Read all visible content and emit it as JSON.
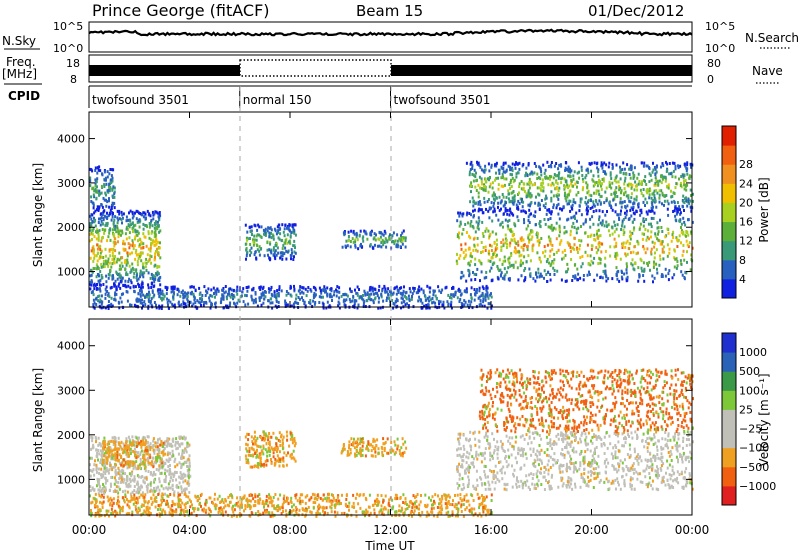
{
  "header": {
    "station": "Prince George (fitACF)",
    "beam": "Beam 15",
    "date": "01/Dec/2012"
  },
  "strips": {
    "nsky_label": "N.Sky",
    "nsearch_label": "N.Search",
    "count_ticks": [
      "10^5",
      "10^0"
    ],
    "freq_label_top": "Freq.",
    "freq_label_unit": "[MHz]",
    "freq_ticks": [
      "18",
      "8"
    ],
    "nave_label": "Nave",
    "nave_ticks": [
      "80",
      "0"
    ],
    "cpid_label": "CPID"
  },
  "cpid_segments": [
    {
      "label": "twofsound 3501",
      "start_hour": 0,
      "end_hour": 6
    },
    {
      "label": "normal 150",
      "start_hour": 6,
      "end_hour": 12
    },
    {
      "label": "twofsound 3501",
      "start_hour": 12,
      "end_hour": 24
    }
  ],
  "axes": {
    "ylabel": "Slant Range [km]",
    "xlabel": "Time UT",
    "x_ticks": [
      "00:00",
      "04:00",
      "08:00",
      "12:00",
      "16:00",
      "20:00",
      "00:00"
    ],
    "y_ticks": [
      "1000",
      "2000",
      "3000",
      "4000"
    ]
  },
  "colors": {
    "power_scale": [
      "#1020e0",
      "#2860c0",
      "#3a9a78",
      "#5cb03a",
      "#a8d020",
      "#f0c000",
      "#f09020",
      "#f06010",
      "#e02000"
    ],
    "velocity_scale": [
      "#2030d0",
      "#2a62b8",
      "#3a9a48",
      "#7cc838",
      "#c0c0b8",
      "#c0c0b8",
      "#f0a020",
      "#f06010",
      "#e02020"
    ]
  },
  "chart_data": [
    {
      "type": "heatmap",
      "title": "",
      "xlabel": "Time UT",
      "ylabel": "Slant Range [km]",
      "xlim": [
        0,
        24
      ],
      "ylim": [
        200,
        4600
      ],
      "colorbar_label": "Power [dB]",
      "colorbar_ticks": [
        "4",
        "8",
        "12",
        "16",
        "20",
        "24",
        "28"
      ],
      "scatter_regions": [
        {
          "hours": [
            0,
            2.8
          ],
          "range_km": [
            700,
            2400
          ],
          "peak_value_db": 28
        },
        {
          "hours": [
            0,
            1.0
          ],
          "range_km": [
            2400,
            3400
          ],
          "peak_value_db": 12
        },
        {
          "hours": [
            0,
            16
          ],
          "range_km": [
            200,
            700
          ],
          "peak_value_db": 8
        },
        {
          "hours": [
            6.2,
            8.2
          ],
          "range_km": [
            1300,
            2100
          ],
          "peak_value_db": 16
        },
        {
          "hours": [
            10,
            12.6
          ],
          "range_km": [
            1550,
            1950
          ],
          "peak_value_db": 16
        },
        {
          "hours": [
            14.6,
            24
          ],
          "range_km": [
            800,
            2400
          ],
          "peak_value_db": 28
        },
        {
          "hours": [
            15,
            24
          ],
          "range_km": [
            2400,
            3500
          ],
          "peak_value_db": 20
        }
      ]
    },
    {
      "type": "heatmap",
      "title": "",
      "xlabel": "Time UT",
      "ylabel": "Slant Range [km]",
      "xlim": [
        0,
        24
      ],
      "ylim": [
        200,
        4600
      ],
      "colorbar_label": "Velocity [m s⁻¹]",
      "colorbar_ticks": [
        "1000",
        "500",
        "100",
        "25",
        "−25",
        "−100",
        "−500",
        "−1000"
      ],
      "scatter_regions": [
        {
          "hours": [
            0,
            4
          ],
          "range_km": [
            700,
            2000
          ],
          "dominant_velocity": "-25 to 25"
        },
        {
          "hours": [
            0.5,
            3
          ],
          "range_km": [
            1300,
            1900
          ],
          "dominant_velocity": "-100"
        },
        {
          "hours": [
            0,
            16
          ],
          "range_km": [
            200,
            700
          ],
          "dominant_velocity": "-100"
        },
        {
          "hours": [
            6.2,
            8.2
          ],
          "range_km": [
            1300,
            2100
          ],
          "dominant_velocity": "-100"
        },
        {
          "hours": [
            10,
            12.6
          ],
          "range_km": [
            1550,
            1950
          ],
          "dominant_velocity": "-100"
        },
        {
          "hours": [
            14.6,
            24
          ],
          "range_km": [
            800,
            2100
          ],
          "dominant_velocity": "-25 to 25"
        },
        {
          "hours": [
            15.5,
            24
          ],
          "range_km": [
            2100,
            3500
          ],
          "dominant_velocity": "-500"
        }
      ]
    }
  ]
}
